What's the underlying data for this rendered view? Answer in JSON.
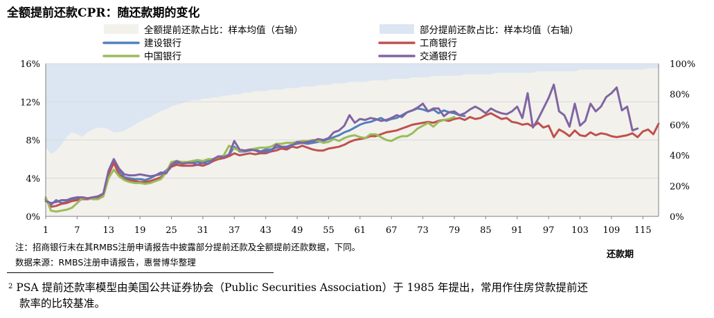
{
  "title": "全额提前还款CPR：随还款期的变化",
  "note": "注：招商银行未在其RMBS注册申请报告中披露部分提前还款及全额提前还款数据，下同。",
  "source": "数据来源：RMBS注册申请报告，惠誉博华整理",
  "footnote": {
    "marker": "2",
    "line1": "PSA 提前还款率模型由美国公共证券协会（Public Securities Association）于 1985 年提出，常用作住房贷款提前还",
    "line2": "款率的比较基准。"
  },
  "chart_data": {
    "type": "line",
    "xlabel": "还款期",
    "x": [
      1,
      2,
      3,
      4,
      5,
      6,
      7,
      8,
      9,
      10,
      11,
      12,
      13,
      14,
      15,
      16,
      17,
      18,
      19,
      20,
      21,
      22,
      23,
      24,
      25,
      26,
      27,
      28,
      29,
      30,
      31,
      32,
      33,
      34,
      35,
      36,
      37,
      38,
      39,
      40,
      41,
      42,
      43,
      44,
      45,
      46,
      47,
      48,
      49,
      50,
      51,
      52,
      53,
      54,
      55,
      56,
      57,
      58,
      59,
      60,
      61,
      62,
      63,
      64,
      65,
      66,
      67,
      68,
      69,
      70,
      71,
      72,
      73,
      74,
      75,
      76,
      77,
      78,
      79,
      80,
      81,
      82,
      83,
      84,
      85,
      86,
      87,
      88,
      89,
      90,
      91,
      92,
      93,
      94,
      95,
      96,
      97,
      98,
      99,
      100,
      101,
      102,
      103,
      104,
      105,
      106,
      107,
      108,
      109,
      110,
      111,
      112,
      113,
      114,
      115,
      116,
      117,
      118
    ],
    "xticks": [
      "1",
      "7",
      "13",
      "19",
      "25",
      "31",
      "37",
      "43",
      "49",
      "55",
      "61",
      "67",
      "73",
      "79",
      "85",
      "91",
      "97",
      "103",
      "109",
      "115"
    ],
    "y_left": {
      "ylim": [
        0,
        16
      ],
      "ticks": [
        "0%",
        "4%",
        "8%",
        "12%",
        "16%"
      ]
    },
    "y_right": {
      "ylim": [
        0,
        100
      ],
      "ticks": [
        "0%",
        "20%",
        "40%",
        "60%",
        "80%",
        "100%"
      ]
    },
    "area_series": [
      {
        "name": "部分提前还款占比：样本均值（右轴）",
        "axis": "right",
        "color": "#dce6f2",
        "values": [
          100,
          100,
          100,
          100,
          100,
          100,
          100,
          100,
          100,
          100,
          100,
          100,
          100,
          100,
          100,
          100,
          100,
          100,
          100,
          100,
          100,
          100,
          100,
          100,
          100,
          100,
          100,
          100,
          100,
          100,
          100,
          100,
          100,
          100,
          100,
          100,
          100,
          100,
          100,
          100,
          100,
          100,
          100,
          100,
          100,
          100,
          100,
          100,
          100,
          100,
          100,
          100,
          100,
          100,
          100,
          100,
          100,
          100,
          100,
          100,
          100,
          100,
          100,
          100,
          100,
          100,
          100,
          100,
          100,
          100,
          100,
          100,
          100,
          100,
          100,
          100,
          100,
          100,
          100,
          100,
          100,
          100,
          100,
          100,
          100,
          100,
          100,
          100,
          100,
          100,
          100,
          100,
          100,
          100,
          100,
          100,
          100,
          100,
          100,
          100,
          100,
          100,
          100,
          100,
          100,
          100,
          100,
          100,
          100,
          100,
          100,
          100,
          100,
          100,
          100,
          100,
          100,
          100
        ]
      },
      {
        "name": "全额提前还款占比：样本均值（右轴）",
        "axis": "right",
        "color": "#f2f1ec",
        "values": [
          45,
          41,
          43,
          47,
          52,
          55,
          54,
          52,
          55,
          57,
          58,
          58,
          57,
          55,
          55,
          56,
          58,
          60,
          62,
          64,
          65,
          67,
          69,
          70,
          72,
          73,
          74,
          75,
          76,
          76,
          77,
          77,
          78,
          78,
          79,
          79,
          80,
          80,
          81,
          81,
          82,
          82,
          82,
          83,
          83,
          83,
          84,
          84,
          84,
          85,
          85,
          85,
          86,
          86,
          86,
          87,
          87,
          87,
          88,
          88,
          88,
          88,
          89,
          89,
          89,
          89,
          90,
          90,
          90,
          90,
          91,
          91,
          91,
          91,
          92,
          92,
          92,
          92,
          92,
          92,
          93,
          93,
          93,
          93,
          93,
          93,
          94,
          94,
          94,
          94,
          94,
          94,
          94,
          94,
          95,
          95,
          95,
          95,
          95,
          95,
          95,
          95,
          96,
          96,
          96,
          96,
          96,
          96,
          96,
          96,
          96,
          96,
          96,
          96,
          96,
          97,
          97,
          97
        ]
      }
    ],
    "series": [
      {
        "name": "建设银行",
        "color": "#4f81bd",
        "values": [
          1.8,
          1.2,
          1.7,
          1.4,
          1.5,
          1.7,
          1.9,
          1.9,
          1.8,
          1.9,
          2.0,
          2.3,
          4.7,
          5.8,
          4.8,
          4.1,
          4.0,
          3.9,
          3.9,
          3.8,
          4.0,
          4.3,
          4.4,
          4.8,
          5.4,
          5.6,
          5.6,
          5.6,
          5.7,
          5.7,
          5.6,
          5.8,
          6.0,
          6.2,
          6.2,
          6.4,
          7.3,
          6.8,
          6.8,
          6.9,
          7.0,
          6.8,
          7.0,
          7.0,
          7.2,
          7.3,
          7.3,
          7.5,
          7.6,
          7.7,
          7.6,
          7.7,
          7.8,
          7.9,
          8.1,
          8.3,
          8.5,
          8.8,
          9.0,
          9.3,
          9.6,
          9.8,
          9.9,
          10.1,
          10.3,
          10.0,
          10.2,
          10.3,
          10.6,
          10.9,
          11.1,
          11.3,
          11.2,
          11.0,
          11.2,
          10.8,
          11.1,
          10.9,
          10.8,
          10.6,
          10.5,
          null,
          null,
          null,
          null,
          null,
          null,
          null,
          null,
          null,
          null,
          null,
          null,
          null,
          null,
          null,
          null,
          null,
          null,
          null,
          null,
          null,
          null,
          null,
          null,
          null,
          null,
          null,
          null,
          null,
          null,
          null,
          null,
          null,
          null,
          null,
          null,
          null
        ]
      },
      {
        "name": "工商银行",
        "color": "#c0504d",
        "values": [
          1.8,
          1.0,
          1.1,
          1.3,
          1.4,
          1.6,
          1.7,
          1.8,
          1.8,
          1.9,
          2.0,
          2.3,
          4.4,
          5.6,
          4.4,
          3.9,
          3.8,
          3.7,
          3.6,
          3.6,
          3.7,
          3.9,
          4.1,
          4.6,
          5.2,
          5.4,
          5.3,
          5.3,
          5.3,
          5.4,
          5.3,
          5.5,
          5.8,
          6.0,
          6.1,
          6.3,
          6.6,
          6.4,
          6.5,
          6.6,
          6.5,
          6.6,
          6.6,
          6.8,
          6.9,
          7.1,
          7.0,
          7.3,
          7.2,
          7.4,
          7.2,
          7.0,
          6.9,
          6.9,
          7.1,
          7.2,
          7.3,
          7.5,
          7.8,
          8.0,
          8.1,
          8.2,
          8.4,
          8.4,
          8.6,
          8.8,
          8.9,
          9.0,
          9.2,
          9.4,
          9.6,
          9.7,
          9.8,
          9.9,
          9.8,
          10.0,
          10.1,
          10.0,
          10.2,
          10.3,
          10.1,
          10.4,
          10.2,
          10.3,
          10.6,
          10.8,
          10.5,
          10.2,
          10.3,
          9.9,
          9.8,
          9.6,
          9.7,
          9.4,
          9.8,
          9.3,
          9.5,
          8.3,
          9.1,
          8.8,
          8.4,
          9.0,
          8.5,
          8.4,
          8.8,
          8.5,
          8.7,
          8.6,
          8.4,
          8.3,
          8.4,
          8.5,
          8.7,
          8.3,
          8.9,
          9.1,
          8.6,
          9.7
        ]
      },
      {
        "name": "中国银行",
        "color": "#9bbb59",
        "values": [
          2.0,
          0.6,
          0.5,
          0.6,
          0.7,
          0.9,
          1.4,
          1.9,
          1.9,
          1.8,
          1.8,
          2.1,
          4.0,
          4.9,
          4.2,
          3.8,
          3.6,
          3.5,
          3.5,
          3.4,
          3.5,
          3.7,
          3.9,
          4.6,
          5.7,
          5.8,
          5.7,
          5.7,
          5.8,
          5.9,
          5.8,
          6.0,
          6.0,
          6.2,
          6.4,
          7.4,
          7.1,
          6.9,
          6.9,
          7.0,
          7.1,
          7.2,
          7.2,
          7.3,
          7.6,
          7.6,
          7.7,
          7.7,
          7.8,
          7.9,
          7.9,
          8.0,
          7.9,
          7.7,
          7.8,
          8.1,
          7.9,
          8.2,
          8.4,
          8.5,
          8.3,
          8.2,
          8.6,
          8.6,
          8.3,
          8.0,
          7.9,
          8.2,
          8.4,
          8.4,
          8.7,
          9.2,
          9.5,
          9.8,
          9.4,
          9.9,
          10.1,
          10.2,
          10.4,
          null,
          null,
          null,
          null,
          null,
          null,
          null,
          null,
          null,
          null,
          null,
          null,
          null,
          null,
          null,
          null,
          null,
          null,
          null,
          null,
          null,
          null,
          null,
          null,
          null,
          null,
          null,
          null,
          null,
          null,
          null,
          null,
          null,
          null,
          null,
          null,
          null,
          null,
          null
        ]
      },
      {
        "name": "交通银行",
        "color": "#8064a2",
        "values": [
          1.6,
          1.4,
          1.5,
          1.7,
          1.7,
          1.9,
          2.0,
          2.0,
          1.9,
          2.0,
          2.1,
          2.4,
          4.8,
          6.0,
          5.0,
          4.4,
          4.3,
          4.3,
          4.4,
          4.3,
          4.2,
          4.3,
          4.6,
          4.5,
          5.4,
          5.8,
          5.5,
          5.6,
          5.6,
          5.4,
          5.6,
          5.5,
          6.0,
          6.3,
          6.2,
          6.5,
          7.9,
          7.0,
          6.9,
          7.0,
          6.9,
          6.7,
          6.8,
          6.8,
          7.5,
          7.3,
          7.2,
          7.4,
          7.8,
          7.7,
          7.8,
          7.9,
          8.1,
          8.0,
          8.2,
          8.8,
          9.0,
          9.5,
          10.6,
          9.8,
          10.2,
          10.1,
          10.3,
          10.2,
          10.0,
          10.1,
          10.3,
          10.6,
          10.4,
          10.9,
          11.1,
          11.4,
          11.8,
          11.0,
          11.3,
          11.3,
          10.5,
          10.9,
          11.0,
          10.6,
          10.8,
          11.2,
          11.5,
          11.2,
          10.8,
          11.3,
          11.0,
          10.8,
          10.7,
          11.0,
          11.5,
          10.3,
          12.9,
          9.3,
          10.2,
          11.3,
          12.4,
          13.8,
          11.0,
          10.6,
          9.4,
          11.8,
          9.5,
          10.0,
          11.8,
          11.0,
          11.5,
          12.5,
          12.9,
          13.5,
          11.1,
          11.5,
          9.0,
          9.2,
          null,
          null,
          null,
          null
        ]
      }
    ]
  }
}
